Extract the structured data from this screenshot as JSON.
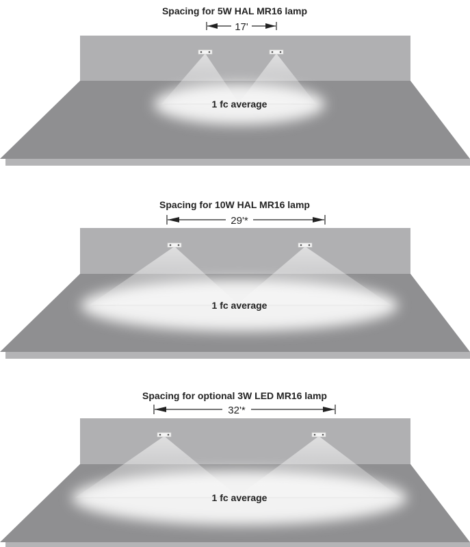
{
  "panels": [
    {
      "title": "Spacing for 5W HAL MR16 lamp",
      "spacing_label": "17'",
      "illuminance_label": "1 fc average"
    },
    {
      "title": "Spacing for 10W HAL MR16 lamp",
      "spacing_label": "29'*",
      "illuminance_label": "1 fc average"
    },
    {
      "title": "Spacing for optional 3W LED MR16 lamp",
      "spacing_label": "32'*",
      "illuminance_label": "1 fc average"
    }
  ],
  "colors": {
    "wall": "#b0b0b2",
    "floor": "#8f8f91",
    "floor_edge": "#b4b4b6",
    "light_pool": "#f2f2f2",
    "arrow": "#222222"
  }
}
